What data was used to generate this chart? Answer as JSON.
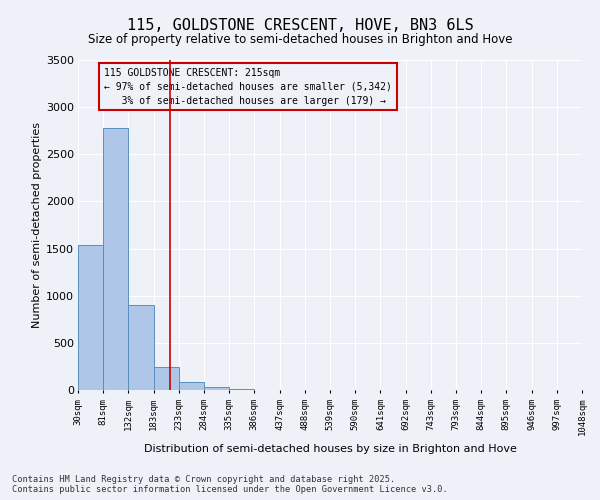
{
  "title": "115, GOLDSTONE CRESCENT, HOVE, BN3 6LS",
  "subtitle": "Size of property relative to semi-detached houses in Brighton and Hove",
  "xlabel": "Distribution of semi-detached houses by size in Brighton and Hove",
  "ylabel": "Number of semi-detached properties",
  "bin_labels": [
    "30sqm",
    "81sqm",
    "132sqm",
    "183sqm",
    "233sqm",
    "284sqm",
    "335sqm",
    "386sqm",
    "437sqm",
    "488sqm",
    "539sqm",
    "590sqm",
    "641sqm",
    "692sqm",
    "743sqm",
    "793sqm",
    "844sqm",
    "895sqm",
    "946sqm",
    "997sqm",
    "1048sqm"
  ],
  "bin_edges": [
    30,
    81,
    132,
    183,
    233,
    284,
    335,
    386,
    437,
    488,
    539,
    590,
    641,
    692,
    743,
    793,
    844,
    895,
    946,
    997,
    1048
  ],
  "bar_heights": [
    1540,
    2780,
    900,
    240,
    90,
    35,
    15,
    0,
    0,
    0,
    0,
    0,
    0,
    0,
    0,
    0,
    0,
    0,
    0,
    0
  ],
  "bar_color": "#aec6e8",
  "bar_edge_color": "#5a8fc0",
  "property_size": 215,
  "property_line_color": "#cc0000",
  "annotation_line1": "115 GOLDSTONE CRESCENT: 215sqm",
  "annotation_line2": "← 97% of semi-detached houses are smaller (5,342)",
  "annotation_line3": "   3% of semi-detached houses are larger (179) →",
  "annotation_box_color": "#cc0000",
  "ylim": [
    0,
    3500
  ],
  "yticks": [
    0,
    500,
    1000,
    1500,
    2000,
    2500,
    3000,
    3500
  ],
  "footer_line1": "Contains HM Land Registry data © Crown copyright and database right 2025.",
  "footer_line2": "Contains public sector information licensed under the Open Government Licence v3.0.",
  "background_color": "#eef2f8",
  "grid_color": "#ffffff"
}
